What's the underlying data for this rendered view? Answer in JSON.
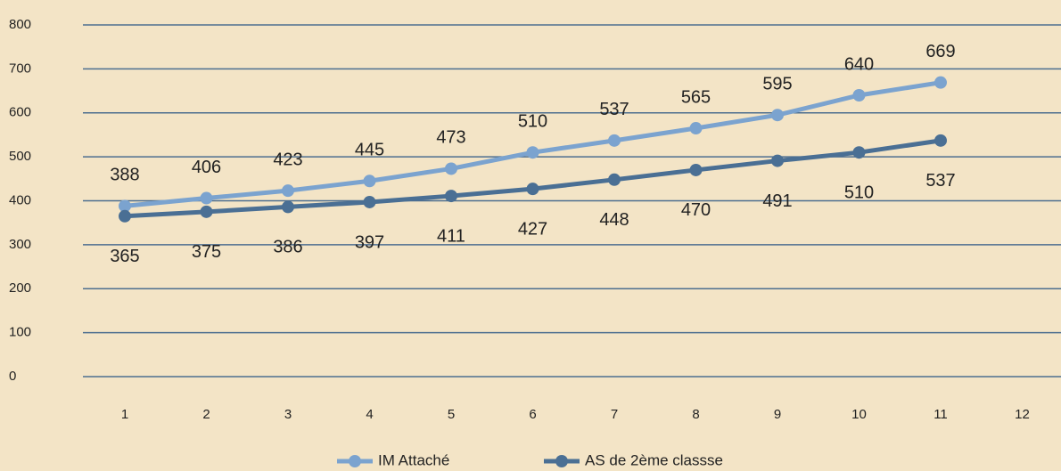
{
  "chart_data": {
    "type": "line",
    "categories": [
      1,
      2,
      3,
      4,
      5,
      6,
      7,
      8,
      9,
      10,
      11,
      12
    ],
    "series": [
      {
        "name": "IM Attaché",
        "color": "#7ba3cf",
        "values": [
          388,
          406,
          423,
          445,
          473,
          510,
          537,
          565,
          595,
          640,
          669,
          null
        ]
      },
      {
        "name": "AS de 2ème classse",
        "color": "#4a6f94",
        "values": [
          365,
          375,
          386,
          397,
          411,
          427,
          448,
          470,
          491,
          510,
          537,
          null
        ]
      }
    ],
    "ylim": [
      0,
      800
    ],
    "yticks": [
      0,
      100,
      200,
      300,
      400,
      500,
      600,
      700,
      800
    ],
    "grid": true,
    "legend": "bottom"
  }
}
